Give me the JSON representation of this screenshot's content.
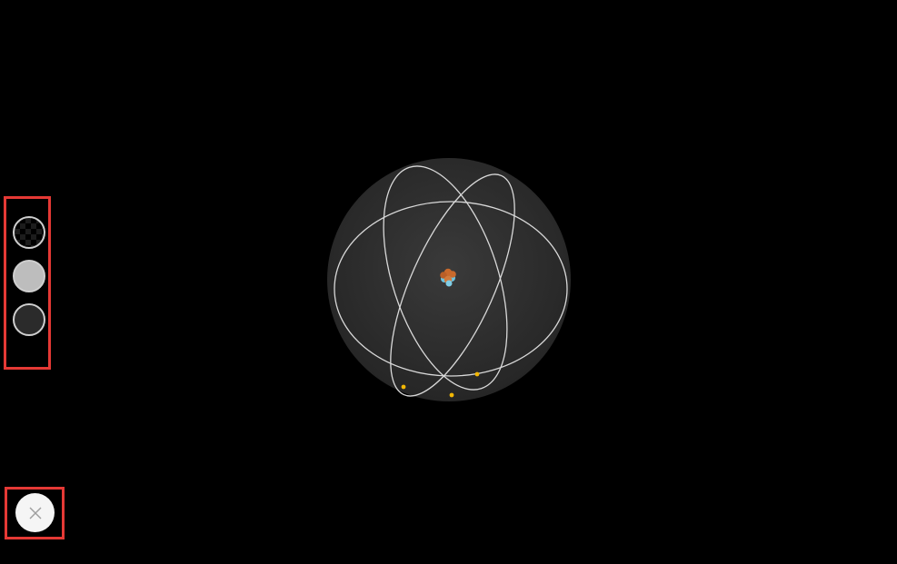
{
  "scene": {
    "sphere_color": "#2e2e2e",
    "orbit_color": "#d9d9d9",
    "electron_color": "#f2b705",
    "nucleus_colors": [
      "#c8692c",
      "#6cc3e0"
    ]
  },
  "background_options": [
    {
      "name": "transparent",
      "icon": "checkerboard-icon",
      "selected": false
    },
    {
      "name": "light",
      "color": "#bdbdbd",
      "selected": false
    },
    {
      "name": "dark",
      "color": "#2b2b2b",
      "selected": true
    }
  ],
  "close_button": {
    "icon": "close-icon"
  }
}
